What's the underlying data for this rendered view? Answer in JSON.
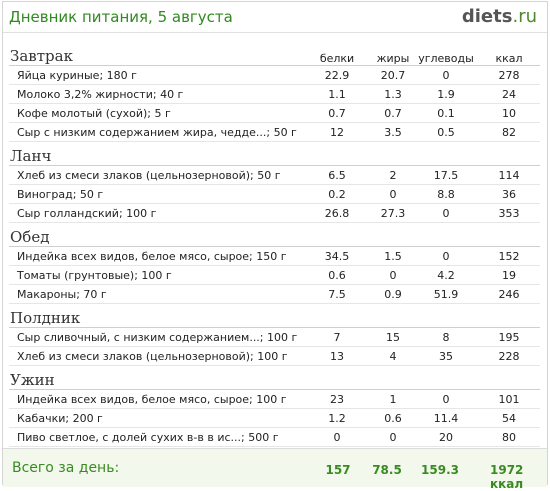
{
  "header": {
    "title": "Дневник питания, 5 августа",
    "logo_name": "diets",
    "logo_tld": ".ru"
  },
  "columns": {
    "protein": "белки",
    "fat": "жиры",
    "carbs": "углеводы",
    "kcal": "ккал"
  },
  "meals": [
    {
      "name": "Завтрак",
      "items": [
        {
          "name": "Яйца куриные; 180 г",
          "protein": "22.9",
          "fat": "20.7",
          "carbs": "0",
          "kcal": "278"
        },
        {
          "name": "Молоко 3,2% жирности; 40 г",
          "protein": "1.1",
          "fat": "1.3",
          "carbs": "1.9",
          "kcal": "24"
        },
        {
          "name": "Кофе молотый (сухой); 5 г",
          "protein": "0.7",
          "fat": "0.7",
          "carbs": "0.1",
          "kcal": "10"
        },
        {
          "name": "Сыр с низким содержанием жира, чедде...; 50 г",
          "protein": "12",
          "fat": "3.5",
          "carbs": "0.5",
          "kcal": "82"
        }
      ]
    },
    {
      "name": "Ланч",
      "items": [
        {
          "name": "Хлеб из смеси злаков (цельнозерновой); 50 г",
          "protein": "6.5",
          "fat": "2",
          "carbs": "17.5",
          "kcal": "114"
        },
        {
          "name": "Виноград; 50 г",
          "protein": "0.2",
          "fat": "0",
          "carbs": "8.8",
          "kcal": "36"
        },
        {
          "name": "Сыр голландский; 100 г",
          "protein": "26.8",
          "fat": "27.3",
          "carbs": "0",
          "kcal": "353"
        }
      ]
    },
    {
      "name": "Обед",
      "items": [
        {
          "name": "Индейка всех видов, белое мясо, сырое; 150 г",
          "protein": "34.5",
          "fat": "1.5",
          "carbs": "0",
          "kcal": "152"
        },
        {
          "name": "Томаты (грунтовые); 100 г",
          "protein": "0.6",
          "fat": "0",
          "carbs": "4.2",
          "kcal": "19"
        },
        {
          "name": "Макароны; 70 г",
          "protein": "7.5",
          "fat": "0.9",
          "carbs": "51.9",
          "kcal": "246"
        }
      ]
    },
    {
      "name": "Полдник",
      "items": [
        {
          "name": "Сыр сливочный, с низким содержанием...; 100 г",
          "protein": "7",
          "fat": "15",
          "carbs": "8",
          "kcal": "195"
        },
        {
          "name": "Хлеб из смеси злаков (цельнозерновой); 100 г",
          "protein": "13",
          "fat": "4",
          "carbs": "35",
          "kcal": "228"
        }
      ]
    },
    {
      "name": "Ужин",
      "items": [
        {
          "name": "Индейка всех видов, белое мясо, сырое; 100 г",
          "protein": "23",
          "fat": "1",
          "carbs": "0",
          "kcal": "101"
        },
        {
          "name": "Кабачки; 200 г",
          "protein": "1.2",
          "fat": "0.6",
          "carbs": "11.4",
          "kcal": "54"
        },
        {
          "name": "Пиво светлое, с долей сухих в-в в ис...; 500 г",
          "protein": "0",
          "fat": "0",
          "carbs": "20",
          "kcal": "80"
        }
      ]
    }
  ],
  "totals": {
    "label": "Всего за день:",
    "protein": "157",
    "fat": "78.5",
    "carbs": "159.3",
    "kcal": "1972 ккал"
  },
  "colors": {
    "title_green": "#2f8a1f",
    "footer_bg": "#f2f9ec",
    "footer_text": "#3a8a22"
  }
}
